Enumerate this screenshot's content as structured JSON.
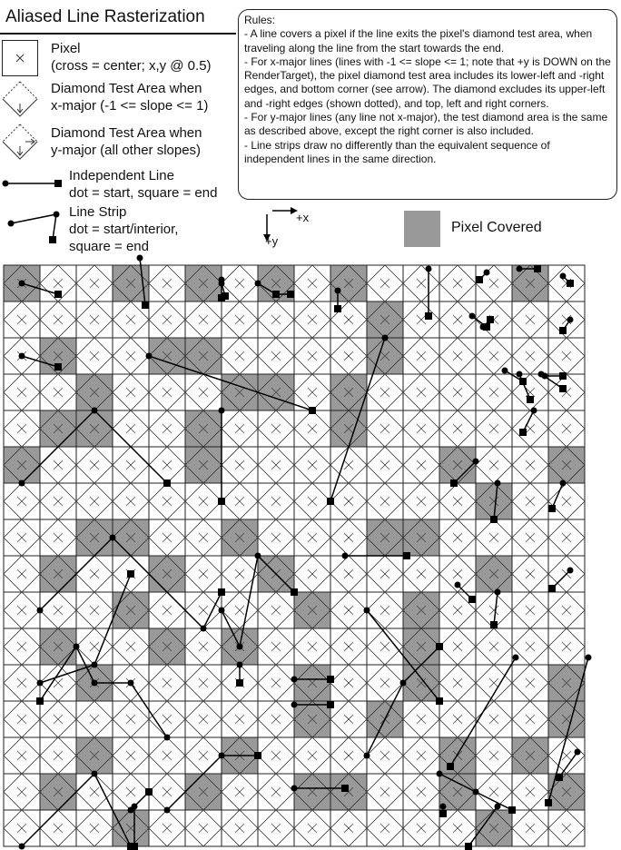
{
  "title": "Aliased Line Rasterization",
  "legend": {
    "pixel": [
      "Pixel",
      "(cross = center; x,y @ 0.5)"
    ],
    "xmajor": [
      "Diamond Test Area when",
      "x-major (-1 <= slope <= 1)"
    ],
    "ymajor": [
      "Diamond Test Area when",
      "y-major (all other slopes)"
    ],
    "independent": [
      "Independent Line",
      "dot = start, square = end"
    ],
    "strip": [
      "Line Strip",
      "dot = start/interior,",
      "square = end"
    ]
  },
  "rules": {
    "heading": "Rules:",
    "items": [
      "- A line covers a pixel if the line exits the pixel's diamond test area, when traveling along the line from the start towards the end.",
      "- For x-major lines (lines with -1 <= slope <= 1; note that +y is DOWN on the RenderTarget), the pixel diamond test area includes its lower-left and -right edges, and bottom corner (see arrow).  The diamond excludes its upper-left and -right edges (shown dotted), and top, left and right corners.",
      "- For y-major lines (any line not x-major), the test diamond area is the same as described above, except the right corner is also included.",
      "- Line strips draw no differently than the equivalent sequence of independent lines in the same direction."
    ]
  },
  "axes": {
    "x": "+x",
    "y": "+y"
  },
  "pixel_covered_label": "Pixel Covered",
  "colors": {
    "covered": "#999999",
    "line": "#000000",
    "grid": "#222222"
  },
  "grid": {
    "cols": 16,
    "rows": 16,
    "covered": [
      [
        0,
        0
      ],
      [
        3,
        0
      ],
      [
        5,
        0
      ],
      [
        7,
        0
      ],
      [
        9,
        0
      ],
      [
        14,
        0
      ],
      [
        10,
        1
      ],
      [
        1,
        2
      ],
      [
        4,
        2
      ],
      [
        5,
        2
      ],
      [
        10,
        2
      ],
      [
        2,
        3
      ],
      [
        6,
        3
      ],
      [
        7,
        3
      ],
      [
        9,
        3
      ],
      [
        1,
        4
      ],
      [
        2,
        4
      ],
      [
        5,
        4
      ],
      [
        9,
        4
      ],
      [
        0,
        5
      ],
      [
        5,
        5
      ],
      [
        12,
        5
      ],
      [
        15,
        5
      ],
      [
        13,
        6
      ],
      [
        2,
        7
      ],
      [
        3,
        7
      ],
      [
        6,
        7
      ],
      [
        10,
        7
      ],
      [
        11,
        7
      ],
      [
        1,
        8
      ],
      [
        4,
        8
      ],
      [
        7,
        8
      ],
      [
        13,
        8
      ],
      [
        3,
        9
      ],
      [
        8,
        9
      ],
      [
        11,
        9
      ],
      [
        1,
        10
      ],
      [
        4,
        10
      ],
      [
        6,
        10
      ],
      [
        11,
        10
      ],
      [
        2,
        11
      ],
      [
        8,
        11
      ],
      [
        11,
        11
      ],
      [
        15,
        11
      ],
      [
        8,
        12
      ],
      [
        10,
        12
      ],
      [
        15,
        12
      ],
      [
        2,
        13
      ],
      [
        6,
        13
      ],
      [
        12,
        13
      ],
      [
        14,
        13
      ],
      [
        1,
        14
      ],
      [
        5,
        14
      ],
      [
        8,
        14
      ],
      [
        9,
        14
      ],
      [
        12,
        14
      ],
      [
        15,
        14
      ],
      [
        3,
        15
      ],
      [
        13,
        15
      ]
    ],
    "lines": [
      [
        [
          0.5,
          0.5
        ],
        [
          1.5,
          0.8
        ]
      ],
      [
        [
          3.75,
          -0.2
        ],
        [
          3.9,
          1.1
        ]
      ],
      [
        [
          6.0,
          0.4
        ],
        [
          6.0,
          0.9
        ]
      ],
      [
        [
          6.0,
          0.5
        ],
        [
          6.1,
          0.85
        ]
      ],
      [
        [
          7.0,
          0.5
        ],
        [
          7.5,
          0.8
        ]
      ],
      [
        [
          7.5,
          0.8
        ],
        [
          7.9,
          0.8
        ]
      ],
      [
        [
          9.2,
          0.7
        ],
        [
          9.2,
          1.2
        ]
      ],
      [
        [
          11.7,
          0.1
        ],
        [
          11.7,
          1.4
        ]
      ],
      [
        [
          13.3,
          0.2
        ],
        [
          13.1,
          0.4
        ]
      ],
      [
        [
          14.2,
          0.1
        ],
        [
          14.7,
          0.1
        ]
      ],
      [
        [
          15.4,
          0.3
        ],
        [
          15.6,
          0.5
        ]
      ],
      [
        [
          12.9,
          1.4
        ],
        [
          13.3,
          1.7
        ]
      ],
      [
        [
          13.2,
          1.7
        ],
        [
          13.4,
          1.5
        ]
      ],
      [
        [
          15.6,
          1.5
        ],
        [
          15.4,
          1.8
        ]
      ],
      [
        [
          0.5,
          2.5
        ],
        [
          1.5,
          2.8
        ]
      ],
      [
        [
          4.0,
          2.5
        ],
        [
          8.5,
          4.0
        ]
      ],
      [
        [
          10.5,
          2.0
        ],
        [
          9.0,
          6.5
        ]
      ],
      [
        [
          13.8,
          2.9
        ],
        [
          14.3,
          3.2
        ]
      ],
      [
        [
          14.9,
          3.05
        ],
        [
          15.4,
          3.05
        ]
      ],
      [
        [
          14.8,
          3.0
        ],
        [
          15.4,
          3.4
        ]
      ],
      [
        [
          14.2,
          3.0
        ],
        [
          14.5,
          3.7
        ]
      ],
      [
        [
          14.6,
          4.0
        ],
        [
          14.3,
          4.6
        ]
      ],
      [
        [
          13.0,
          5.4
        ],
        [
          12.4,
          6.0
        ]
      ],
      [
        [
          13.6,
          6.0
        ],
        [
          13.5,
          7.0
        ]
      ],
      [
        [
          15.4,
          6.0
        ],
        [
          15.1,
          6.7
        ]
      ],
      [
        [
          9.4,
          8.0
        ],
        [
          11.1,
          8.0
        ]
      ],
      [
        [
          12.5,
          8.8
        ],
        [
          12.9,
          9.2
        ]
      ],
      [
        [
          13.6,
          9.0
        ],
        [
          13.5,
          9.9
        ]
      ],
      [
        [
          15.6,
          8.4
        ],
        [
          15.1,
          8.9
        ]
      ],
      [
        [
          8.0,
          11.4
        ],
        [
          9.0,
          11.4
        ]
      ],
      [
        [
          8.0,
          12.1
        ],
        [
          9.0,
          12.1
        ]
      ],
      [
        [
          14.1,
          10.8
        ],
        [
          12.3,
          13.8
        ]
      ],
      [
        [
          16.1,
          10.8
        ],
        [
          15.0,
          14.8
        ]
      ],
      [
        [
          15.8,
          13.4
        ],
        [
          15.3,
          14.1
        ]
      ],
      [
        [
          8.0,
          14.4
        ],
        [
          9.4,
          14.4
        ]
      ],
      [
        [
          3.6,
          14.9
        ],
        [
          3.6,
          16.0
        ]
      ],
      [
        [
          12.1,
          14.9
        ],
        [
          12.1,
          15.1
        ]
      ],
      [
        [
          13.6,
          14.9
        ],
        [
          12.8,
          16.0
        ]
      ]
    ],
    "strips": [
      [
        [
          0.5,
          6.0
        ],
        [
          2.5,
          4.0
        ],
        [
          4.5,
          6.0
        ]
      ],
      [
        [
          6.0,
          4.0
        ],
        [
          6.0,
          6.5
        ]
      ],
      [
        [
          1.0,
          9.5
        ],
        [
          3.0,
          7.5
        ],
        [
          5.5,
          10.0
        ],
        [
          6.0,
          9.0
        ]
      ],
      [
        [
          1.0,
          11.5
        ],
        [
          2.5,
          11.0
        ],
        [
          3.5,
          8.5
        ]
      ],
      [
        [
          6.0,
          9.5
        ],
        [
          6.5,
          10.5
        ],
        [
          7.0,
          8.0
        ],
        [
          8.0,
          9.0
        ]
      ],
      [
        [
          6.5,
          11.0
        ],
        [
          6.5,
          11.5
        ]
      ],
      [
        [
          4.5,
          13.0
        ],
        [
          3.5,
          11.5
        ],
        [
          2.5,
          11.5
        ],
        [
          2.0,
          10.5
        ],
        [
          1.0,
          12.0
        ]
      ],
      [
        [
          0.5,
          16.0
        ],
        [
          2.5,
          14.0
        ],
        [
          3.5,
          16.0
        ]
      ],
      [
        [
          4.5,
          15.0
        ],
        [
          6.0,
          13.5
        ],
        [
          7.0,
          13.5
        ]
      ],
      [
        [
          3.5,
          15.0
        ],
        [
          4.0,
          14.5
        ]
      ],
      [
        [
          10.0,
          13.5
        ],
        [
          11.0,
          11.5
        ],
        [
          12.0,
          10.5
        ]
      ],
      [
        [
          10.0,
          9.5
        ],
        [
          12.0,
          12.0
        ]
      ],
      [
        [
          12.0,
          14.0
        ],
        [
          13.0,
          14.5
        ],
        [
          14.0,
          15.0
        ]
      ]
    ]
  }
}
